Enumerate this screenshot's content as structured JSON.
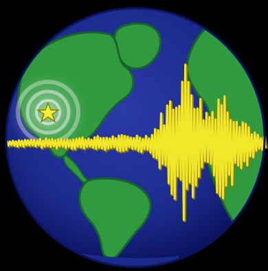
{
  "image": {
    "subject": "earthquake-seismogram-globe-icon",
    "colors": {
      "background": "#000000",
      "ocean": "#1c2a8c",
      "ocean_edge": "#0a1460",
      "land": "#2f9a3e",
      "land_edge": "#17652a",
      "seismic_wave": "#f2e62a",
      "wave_shadow": "#8a7c00",
      "epicenter_star": "#f6ee3a",
      "ripple": "#ffffff"
    },
    "icons": [
      "globe-icon",
      "epicenter-star-icon",
      "seismograph-wave-icon"
    ]
  }
}
